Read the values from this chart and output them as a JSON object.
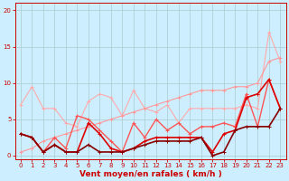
{
  "bg_color": "#cceeff",
  "grid_color": "#aacccc",
  "x_values": [
    0,
    1,
    2,
    3,
    4,
    5,
    6,
    7,
    8,
    9,
    10,
    11,
    12,
    13,
    14,
    15,
    16,
    17,
    18,
    19,
    20,
    21,
    22,
    23
  ],
  "series": [
    {
      "color": "#ffaaaa",
      "alpha": 1.0,
      "lw": 0.8,
      "y": [
        7.0,
        9.5,
        6.5,
        6.5,
        4.5,
        4.0,
        7.5,
        8.5,
        8.0,
        5.5,
        9.0,
        6.5,
        6.0,
        7.0,
        4.5,
        6.5,
        6.5,
        6.5,
        6.5,
        6.5,
        7.0,
        6.5,
        17.0,
        13.0
      ]
    },
    {
      "color": "#ff9999",
      "alpha": 1.0,
      "lw": 0.8,
      "y": [
        0.5,
        1.0,
        2.0,
        2.5,
        3.0,
        3.5,
        4.0,
        4.5,
        5.0,
        5.5,
        6.0,
        6.5,
        7.0,
        7.5,
        8.0,
        8.5,
        9.0,
        9.0,
        9.0,
        9.5,
        9.5,
        10.0,
        13.0,
        13.5
      ]
    },
    {
      "color": "#ff5555",
      "alpha": 1.0,
      "lw": 1.0,
      "y": [
        3.0,
        2.5,
        0.5,
        2.5,
        1.0,
        5.5,
        5.0,
        3.5,
        2.0,
        0.5,
        4.5,
        2.5,
        5.0,
        3.5,
        4.5,
        3.0,
        4.0,
        4.0,
        4.5,
        4.0,
        8.5,
        4.0,
        10.5,
        6.5
      ]
    },
    {
      "color": "#dd0000",
      "alpha": 1.0,
      "lw": 1.2,
      "y": [
        3.0,
        2.5,
        0.5,
        1.5,
        0.5,
        0.5,
        4.5,
        3.0,
        1.0,
        0.5,
        1.0,
        2.0,
        2.5,
        2.5,
        2.5,
        2.5,
        2.5,
        0.5,
        3.0,
        3.5,
        8.0,
        8.5,
        10.5,
        6.5
      ]
    },
    {
      "color": "#880000",
      "alpha": 1.0,
      "lw": 1.2,
      "y": [
        3.0,
        2.5,
        0.5,
        1.5,
        0.5,
        0.5,
        1.5,
        0.5,
        0.5,
        0.5,
        1.0,
        1.5,
        2.0,
        2.0,
        2.0,
        2.0,
        2.5,
        0.0,
        0.5,
        3.5,
        4.0,
        4.0,
        4.0,
        6.5
      ]
    }
  ],
  "xlabel": "Vent moyen/en rafales ( km/h )",
  "xlabel_color": "#cc0000",
  "xlabel_fontsize": 6.5,
  "tick_color": "#cc0000",
  "tick_fontsize": 5.0,
  "ylim": [
    -0.5,
    21
  ],
  "yticks": [
    0,
    5,
    10,
    15,
    20
  ],
  "xlim": [
    -0.5,
    23.5
  ]
}
